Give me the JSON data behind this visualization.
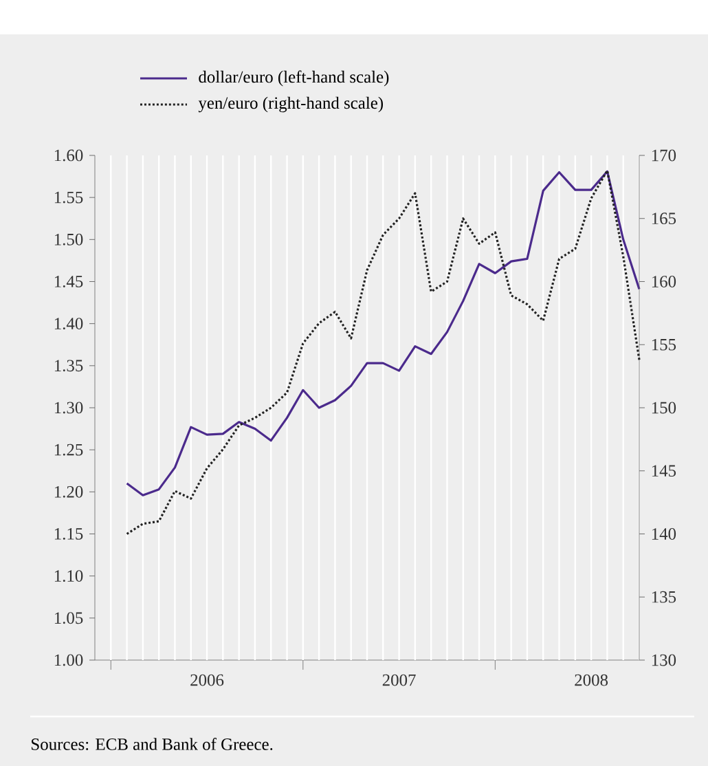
{
  "chart_data": {
    "type": "line",
    "x": [
      "2006-01",
      "2006-02",
      "2006-03",
      "2006-04",
      "2006-05",
      "2006-06",
      "2006-07",
      "2006-08",
      "2006-09",
      "2006-10",
      "2006-11",
      "2006-12",
      "2007-01",
      "2007-02",
      "2007-03",
      "2007-04",
      "2007-05",
      "2007-06",
      "2007-07",
      "2007-08",
      "2007-09",
      "2007-10",
      "2007-11",
      "2007-12",
      "2008-01",
      "2008-02",
      "2008-03",
      "2008-04",
      "2008-05",
      "2008-06",
      "2008-07",
      "2008-08",
      "2008-09"
    ],
    "series": [
      {
        "name": "dollar/euro (left-hand scale)",
        "color": "#4b2a8c",
        "line_style": "solid",
        "values": [
          1.21,
          1.196,
          1.203,
          1.229,
          1.277,
          1.268,
          1.269,
          1.283,
          1.275,
          1.261,
          1.288,
          1.321,
          1.3,
          1.309,
          1.326,
          1.353,
          1.353,
          1.344,
          1.373,
          1.364,
          1.39,
          1.427,
          1.471,
          1.46,
          1.474,
          1.477,
          1.558,
          1.58,
          1.559,
          1.559,
          1.581,
          1.5,
          1.441
        ]
      },
      {
        "name": "yen/euro (right-hand scale)",
        "color": "#222222",
        "line_style": "dotted",
        "axis": "y2",
        "values": [
          140.0,
          140.8,
          141.0,
          143.4,
          142.8,
          145.2,
          146.7,
          148.6,
          149.2,
          150.0,
          151.2,
          155.1,
          156.7,
          157.6,
          155.5,
          160.9,
          163.7,
          165.0,
          167.0,
          159.2,
          160.0,
          165.0,
          163.0,
          163.9,
          158.9,
          158.2,
          156.9,
          161.8,
          162.6,
          166.6,
          168.8,
          162.0,
          153.8
        ]
      }
    ],
    "xlim": [
      "2005-11",
      "2008-09"
    ],
    "xticks": [
      {
        "value": "2006",
        "label": null
      },
      {
        "value": "2007",
        "label": null
      },
      {
        "value": "2008",
        "label": null
      },
      {
        "value": "2006-06",
        "label": "2006"
      },
      {
        "value": "2007-06",
        "label": "2007"
      },
      {
        "value": "2008-06",
        "label": "2008"
      }
    ],
    "ylim": [
      1.0,
      1.6
    ],
    "yticks": [
      {
        "value": 1.0,
        "label": "1.00"
      },
      {
        "value": 1.05,
        "label": "1.05"
      },
      {
        "value": 1.1,
        "label": "1.10"
      },
      {
        "value": 1.15,
        "label": "1.15"
      },
      {
        "value": 1.2,
        "label": "1.20"
      },
      {
        "value": 1.25,
        "label": "1.25"
      },
      {
        "value": 1.3,
        "label": "1.30"
      },
      {
        "value": 1.35,
        "label": "1.35"
      },
      {
        "value": 1.4,
        "label": "1.40"
      },
      {
        "value": 1.45,
        "label": "1.45"
      },
      {
        "value": 1.5,
        "label": "1.50"
      },
      {
        "value": 1.55,
        "label": "1.55"
      },
      {
        "value": 1.6,
        "label": "1.60"
      }
    ],
    "y2lim": [
      130,
      170
    ],
    "y2ticks": [
      130,
      135,
      140,
      145,
      150,
      155,
      160,
      165,
      170
    ],
    "grid": "x",
    "legend": "top left",
    "annotations": [
      "Sources: ECB and Bank of Greece."
    ]
  }
}
